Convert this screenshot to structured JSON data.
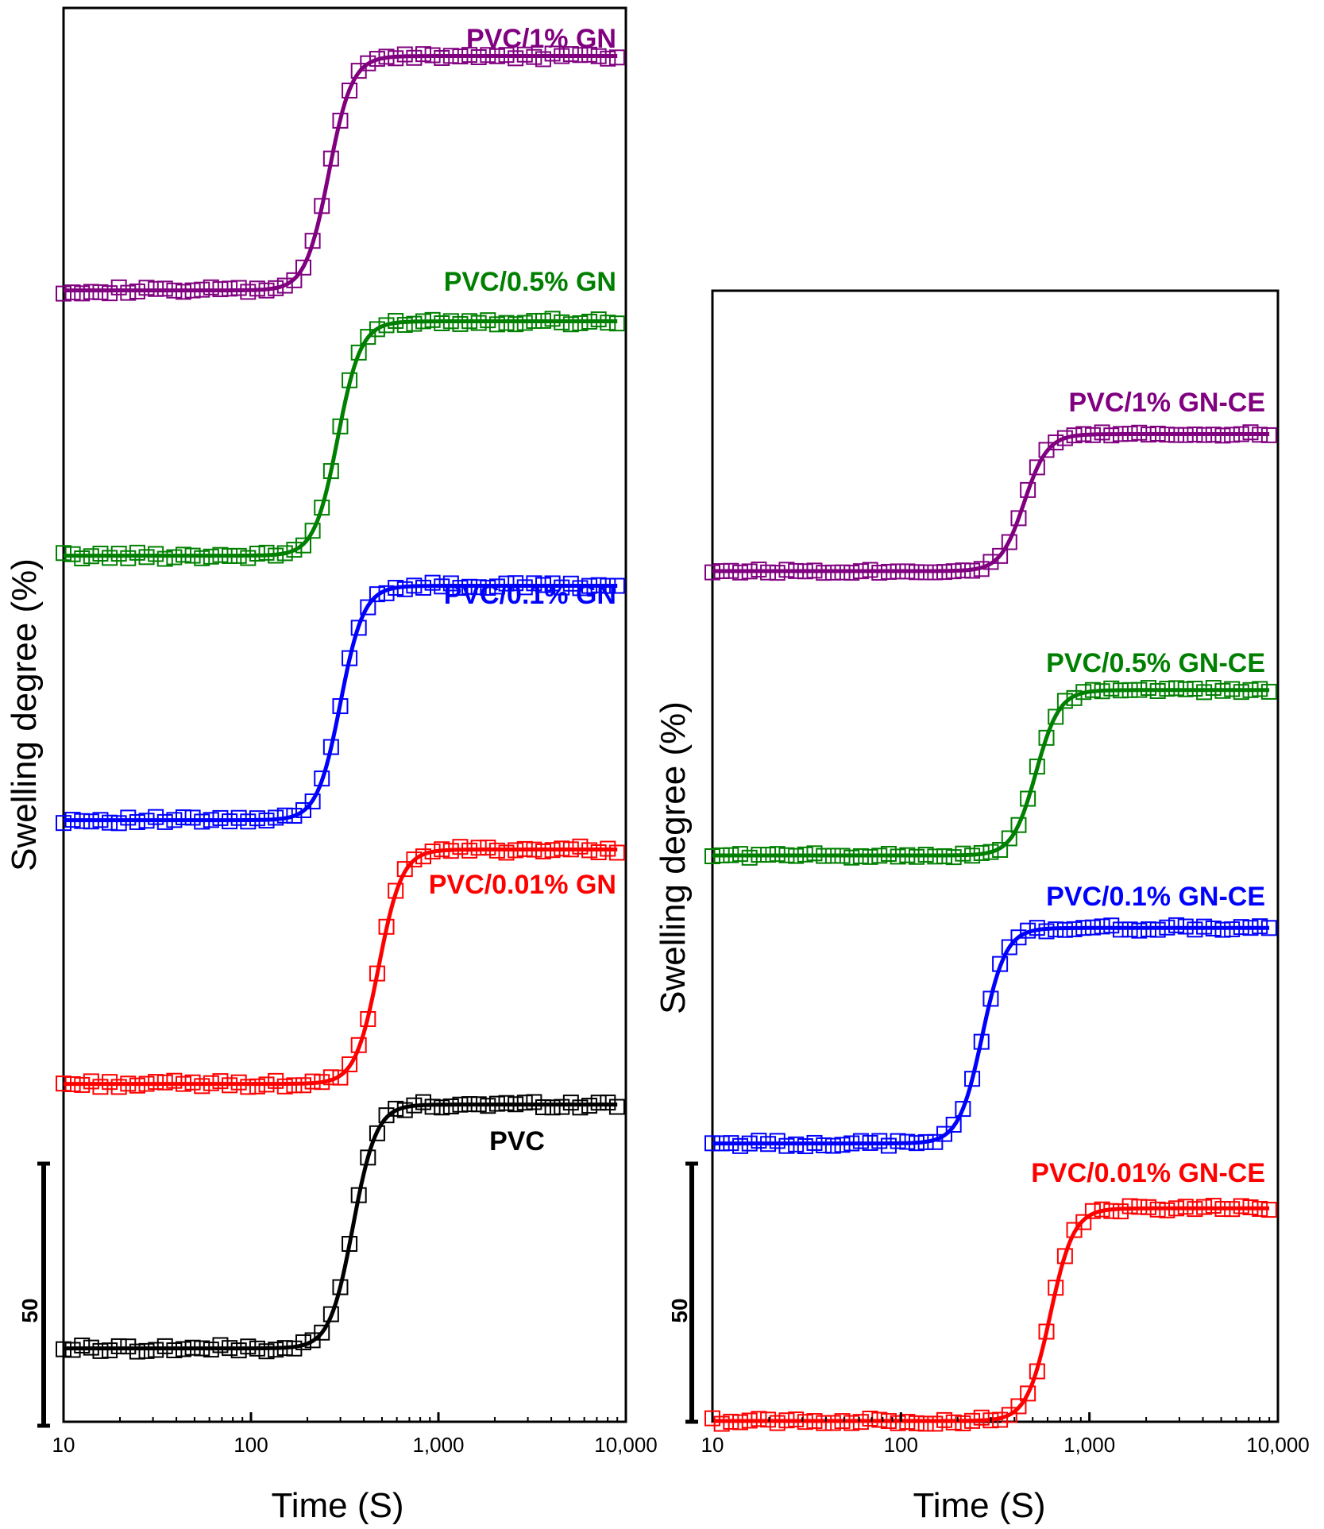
{
  "chart_data": [
    {
      "type": "line",
      "panel": "left",
      "xlabel": "Time (S)",
      "ylabel": "Swelling degree (%)",
      "xscale": "log",
      "xlim": [
        10,
        10000
      ],
      "x_ticks": [
        "10",
        "100",
        "1,000",
        "10,000"
      ],
      "scale_bar": "50",
      "series": [
        {
          "name": "PVC/1% GN",
          "color": "#800080",
          "t_half": 260,
          "start": 0.02,
          "end": 2.5
        },
        {
          "name": "PVC/0.5% GN",
          "color": "#008000",
          "t_half": 290,
          "start": 0.02,
          "end": 2.5
        },
        {
          "name": "PVC/0.1% GN",
          "color": "#0000ff",
          "t_half": 300,
          "start": 0.02,
          "end": 2.5
        },
        {
          "name": "PVC/0.01% GN",
          "color": "#ff0000",
          "t_half": 480,
          "start": 0.02,
          "end": 2.5
        },
        {
          "name": "PVC",
          "color": "#000000",
          "t_half": 350,
          "start": 0.02,
          "end": 2.6
        }
      ]
    },
    {
      "type": "line",
      "panel": "right",
      "xlabel": "Time (S)",
      "ylabel": "Swelling degree (%)",
      "xscale": "log",
      "xlim": [
        10,
        10000
      ],
      "x_ticks": [
        "10",
        "100",
        "1,000",
        "10,000"
      ],
      "scale_bar": "50",
      "series": [
        {
          "name": "PVC/1% GN-CE",
          "color": "#800080",
          "t_half": 450,
          "start": 0.05,
          "end": 1.5
        },
        {
          "name": "PVC/0.5% GN-CE",
          "color": "#008000",
          "t_half": 520,
          "start": 0.05,
          "end": 1.8
        },
        {
          "name": "PVC/0.1% GN-CE",
          "color": "#0000ff",
          "t_half": 270,
          "start": 0.02,
          "end": 2.3
        },
        {
          "name": "PVC/0.01% GN-CE",
          "color": "#ff0000",
          "t_half": 620,
          "start": 0.05,
          "end": 2.3
        }
      ]
    }
  ]
}
